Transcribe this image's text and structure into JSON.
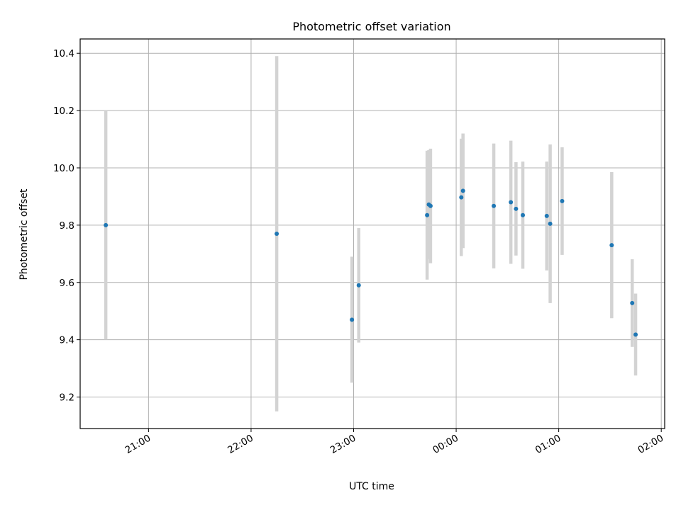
{
  "chart_data": {
    "type": "scatter",
    "title": "Photometric offset variation",
    "xlabel": "UTC time",
    "ylabel": "Photometric offset",
    "x_is_time": true,
    "xlim": [
      "20:20",
      "26:02"
    ],
    "ylim": [
      9.09,
      10.45
    ],
    "x_ticks": [
      "21:00",
      "22:00",
      "23:00",
      "00:00",
      "01:00",
      "02:00"
    ],
    "y_ticks": [
      "9.2",
      "9.4",
      "9.6",
      "9.8",
      "10.0",
      "10.2",
      "10.4"
    ],
    "grid": true,
    "colors": {
      "point": "#1f77b4",
      "errorbar": "#d3d3d3",
      "grid": "#b0b0b0"
    },
    "points": [
      {
        "x": "20:35",
        "y": 9.8,
        "err": 0.4
      },
      {
        "x": "22:15",
        "y": 9.77,
        "err": 0.62
      },
      {
        "x": "22:59",
        "y": 9.47,
        "err": 0.22
      },
      {
        "x": "23:03",
        "y": 9.59,
        "err": 0.2
      },
      {
        "x": "23:43",
        "y": 9.835,
        "err": 0.225
      },
      {
        "x": "23:44",
        "y": 9.872,
        "err": 0.19
      },
      {
        "x": "23:45",
        "y": 9.867,
        "err": 0.2
      },
      {
        "x": "00:03",
        "y": 9.897,
        "err": 0.205
      },
      {
        "x": "00:04",
        "y": 9.92,
        "err": 0.2
      },
      {
        "x": "00:22",
        "y": 9.867,
        "err": 0.218
      },
      {
        "x": "00:32",
        "y": 9.88,
        "err": 0.215
      },
      {
        "x": "00:35",
        "y": 9.857,
        "err": 0.163
      },
      {
        "x": "00:39",
        "y": 9.835,
        "err": 0.187
      },
      {
        "x": "00:53",
        "y": 9.832,
        "err": 0.19
      },
      {
        "x": "00:55",
        "y": 9.805,
        "err": 0.277
      },
      {
        "x": "01:02",
        "y": 9.884,
        "err": 0.188
      },
      {
        "x": "01:31",
        "y": 9.73,
        "err": 0.255
      },
      {
        "x": "01:43",
        "y": 9.528,
        "err": 0.153
      },
      {
        "x": "01:45",
        "y": 9.418,
        "err": 0.143
      }
    ]
  }
}
